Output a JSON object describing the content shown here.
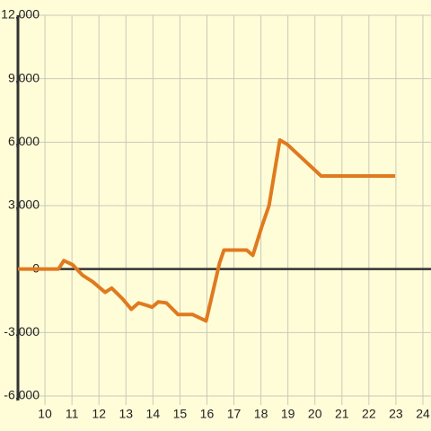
{
  "chart_data": {
    "type": "line",
    "x": [
      9,
      10.5,
      10.7,
      11.03,
      11.4,
      11.77,
      12.23,
      12.47,
      12.87,
      13.2,
      13.47,
      13.73,
      13.97,
      14.2,
      14.5,
      14.93,
      15.47,
      15.97,
      16.47,
      16.63,
      17.47,
      17.7,
      18.03,
      18.3,
      18.7,
      18.97,
      20.23,
      22.97
    ],
    "series": [
      {
        "color": "#e07a1f",
        "values": [
          0,
          0,
          400,
          200,
          -300,
          -600,
          -1100,
          -900,
          -1400,
          -1900,
          -1600,
          -1700,
          -1800,
          -1550,
          -1600,
          -2150,
          -2150,
          -2450,
          300,
          900,
          900,
          650,
          2000,
          3000,
          6100,
          5900,
          4400,
          4400
        ]
      }
    ],
    "xlim": [
      9,
      24.3
    ],
    "ylim": [
      -6000,
      12000
    ],
    "xticks": [
      10,
      11,
      12,
      13,
      14,
      15,
      16,
      17,
      18,
      19,
      20,
      21,
      22,
      23,
      24
    ],
    "yticks": [
      {
        "value": -6000,
        "label": "-6,000"
      },
      {
        "value": -3000,
        "label": "-3,000"
      },
      0,
      {
        "value": 3000,
        "label": "3,000"
      },
      {
        "value": 6000,
        "label": "6,000"
      },
      {
        "value": 9000,
        "label": "9,000"
      },
      {
        "value": 12000,
        "label": "12,000"
      }
    ],
    "grid": true
  }
}
